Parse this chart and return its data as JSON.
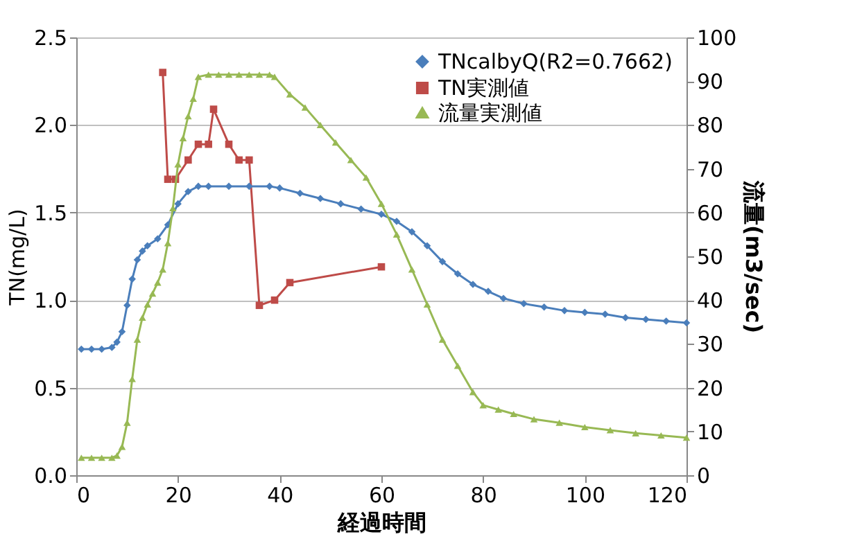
{
  "chart_data": {
    "type": "line",
    "xlabel": "経過時間",
    "ylabel": "TN(mg/L)",
    "y2label": "流量(m3/sec)",
    "xlim": [
      0,
      120
    ],
    "xticks": [
      0,
      20,
      40,
      60,
      80,
      100,
      120
    ],
    "ylim": [
      0,
      2.5
    ],
    "yticks": [
      {
        "value": 0,
        "label": "0.0"
      },
      {
        "value": 0.5,
        "label": "0.5"
      },
      {
        "value": 1,
        "label": "1.0"
      },
      {
        "value": 1.5,
        "label": "1.5"
      },
      {
        "value": 2,
        "label": "2.0"
      },
      {
        "value": 2.5,
        "label": "2.5"
      }
    ],
    "y2lim": [
      0,
      100
    ],
    "y2ticks": [
      0,
      10,
      20,
      30,
      40,
      50,
      60,
      70,
      80,
      90,
      100
    ],
    "grid": "y",
    "legend": "top right",
    "line_style": "solid",
    "series": [
      {
        "name": "TNcalbyQ(R2=0.7662)",
        "color": "#4a7ebb",
        "marker": "diamond",
        "axis": "y",
        "x": [
          1,
          3,
          5,
          7,
          8,
          9,
          10,
          11,
          12,
          13,
          14,
          16,
          18,
          20,
          22,
          24,
          26,
          30,
          34,
          38,
          40,
          44,
          48,
          52,
          56,
          60,
          63,
          66,
          69,
          72,
          75,
          78,
          81,
          84,
          88,
          92,
          96,
          100,
          104,
          108,
          112,
          116,
          120
        ],
        "values": [
          0.72,
          0.72,
          0.72,
          0.73,
          0.76,
          0.82,
          0.97,
          1.12,
          1.23,
          1.28,
          1.31,
          1.35,
          1.43,
          1.55,
          1.62,
          1.65,
          1.65,
          1.65,
          1.65,
          1.65,
          1.64,
          1.61,
          1.58,
          1.55,
          1.52,
          1.49,
          1.45,
          1.39,
          1.31,
          1.22,
          1.15,
          1.09,
          1.05,
          1.01,
          0.98,
          0.96,
          0.94,
          0.93,
          0.92,
          0.9,
          0.89,
          0.88,
          0.87
        ]
      },
      {
        "name": "TN実測値",
        "color": "#be4b48",
        "marker": "square",
        "axis": "y",
        "x": [
          17,
          18,
          19.5,
          22,
          24,
          26,
          27,
          30,
          32,
          34,
          36,
          39,
          42,
          60
        ],
        "values": [
          2.3,
          1.69,
          1.69,
          1.8,
          1.89,
          1.89,
          2.09,
          1.89,
          1.8,
          1.8,
          0.97,
          1.0,
          1.1,
          1.19
        ]
      },
      {
        "name": "流量実測値",
        "color": "#98b954",
        "marker": "triangle",
        "axis": "y2",
        "x": [
          1,
          3,
          5,
          7,
          8,
          9,
          10,
          11,
          12,
          13,
          14,
          15,
          16,
          17,
          18,
          19,
          20,
          21,
          22,
          23,
          24,
          26,
          28,
          30,
          32,
          34,
          36,
          38,
          39,
          42,
          45,
          48,
          51,
          54,
          57,
          60,
          63,
          66,
          69,
          72,
          75,
          78,
          80,
          83,
          86,
          90,
          95,
          100,
          105,
          110,
          115,
          120
        ],
        "values": [
          4,
          4,
          4,
          4,
          4.5,
          6.5,
          12,
          22,
          31,
          36,
          39,
          41.5,
          44,
          47,
          53,
          61,
          71,
          77,
          82,
          86,
          91,
          91.5,
          91.5,
          91.5,
          91.5,
          91.5,
          91.5,
          91.5,
          91,
          87,
          84,
          80,
          76,
          72,
          68,
          62,
          55,
          47,
          39,
          31,
          25,
          19,
          16,
          15,
          14,
          12.8,
          12,
          11,
          10.3,
          9.6,
          9.1,
          8.6
        ]
      }
    ]
  }
}
